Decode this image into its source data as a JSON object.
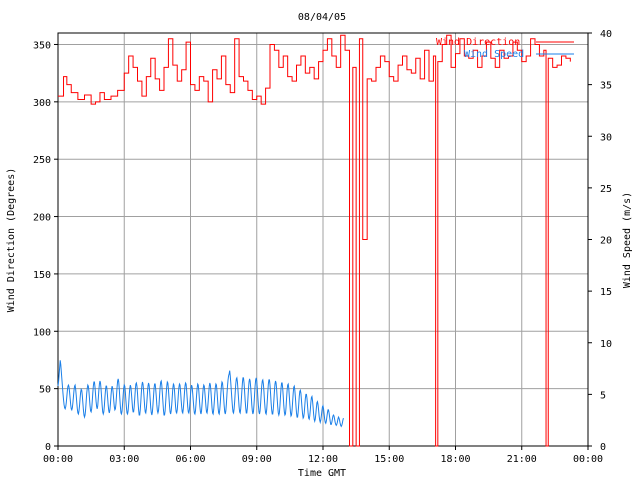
{
  "chart_data": {
    "type": "line",
    "title": "08/04/05",
    "xlabel": "Time GMT",
    "ylabel_left": "Wind Direction (Degrees)",
    "ylabel_right": "Wind Speed (m/s)",
    "xlim": [
      0,
      24
    ],
    "x_ticks": [
      "00:00",
      "03:00",
      "06:00",
      "09:00",
      "12:00",
      "15:00",
      "18:00",
      "21:00",
      "00:00"
    ],
    "ylim_left": [
      0,
      360
    ],
    "y_ticks_left": [
      "0",
      "50",
      "100",
      "150",
      "200",
      "250",
      "300",
      "350"
    ],
    "ylim_right": [
      0,
      40
    ],
    "y_ticks_right": [
      "0",
      "5",
      "10",
      "15",
      "20",
      "25",
      "30",
      "35",
      "40"
    ],
    "grid": true,
    "legend_position": "top-right",
    "colors": {
      "direction": "#ff0000",
      "speed": "#1a7fe8",
      "grid": "#a0a0a0",
      "axis": "#000000"
    },
    "series": [
      {
        "name": "Wind Direction",
        "axis": "left",
        "x": [
          0.0,
          0.25,
          0.4,
          0.6,
          0.9,
          1.2,
          1.5,
          1.7,
          1.9,
          2.1,
          2.4,
          2.7,
          3.0,
          3.2,
          3.4,
          3.6,
          3.8,
          4.0,
          4.2,
          4.4,
          4.6,
          4.8,
          5.0,
          5.2,
          5.4,
          5.6,
          5.8,
          6.0,
          6.2,
          6.4,
          6.6,
          6.8,
          7.0,
          7.2,
          7.4,
          7.6,
          7.8,
          8.0,
          8.2,
          8.4,
          8.6,
          8.8,
          9.0,
          9.2,
          9.4,
          9.6,
          9.8,
          10.0,
          10.2,
          10.4,
          10.6,
          10.8,
          11.0,
          11.2,
          11.4,
          11.6,
          11.8,
          12.0,
          12.2,
          12.4,
          12.6,
          12.8,
          13.0,
          13.2,
          13.35,
          13.5,
          13.65,
          13.8,
          14.0,
          14.2,
          14.4,
          14.6,
          14.8,
          15.0,
          15.2,
          15.4,
          15.6,
          15.8,
          16.0,
          16.2,
          16.4,
          16.6,
          16.8,
          17.0,
          17.1,
          17.2,
          17.4,
          17.6,
          17.8,
          18.0,
          18.2,
          18.4,
          18.6,
          18.8,
          19.0,
          19.2,
          19.4,
          19.6,
          19.8,
          20.0,
          20.2,
          20.4,
          20.6,
          20.8,
          21.0,
          21.2,
          21.4,
          21.6,
          21.8,
          22.0,
          22.1,
          22.2,
          22.4,
          22.6,
          22.8,
          23.0,
          23.2
        ],
        "values": [
          305,
          322,
          315,
          308,
          302,
          306,
          298,
          300,
          308,
          302,
          305,
          310,
          325,
          340,
          330,
          318,
          305,
          322,
          338,
          320,
          310,
          330,
          355,
          332,
          318,
          328,
          352,
          315,
          310,
          322,
          318,
          300,
          328,
          320,
          340,
          315,
          308,
          355,
          322,
          318,
          310,
          302,
          305,
          298,
          312,
          350,
          345,
          330,
          340,
          322,
          318,
          332,
          340,
          325,
          330,
          320,
          335,
          345,
          355,
          340,
          330,
          358,
          345,
          0,
          330,
          0,
          355,
          180,
          320,
          318,
          330,
          340,
          335,
          322,
          318,
          332,
          340,
          328,
          325,
          338,
          320,
          345,
          318,
          340,
          0,
          335,
          350,
          358,
          330,
          342,
          355,
          340,
          338,
          345,
          330,
          340,
          352,
          338,
          330,
          345,
          338,
          340,
          352,
          345,
          335,
          340,
          355,
          350,
          340,
          345,
          0,
          338,
          330,
          332,
          340,
          338,
          335
        ],
        "values_note": ""
      },
      {
        "name": "Wind Speed",
        "axis": "right",
        "hours_start": 0,
        "hours_step": 0.025,
        "values": [
          5.8,
          6.2,
          6.9,
          7.6,
          8.3,
          7.9,
          7.2,
          6.5,
          5.8,
          5.1,
          4.5,
          4.0,
          3.7,
          3.6,
          3.8,
          4.2,
          4.8,
          5.4,
          5.8,
          5.9,
          5.7,
          5.2,
          4.6,
          4.0,
          3.6,
          3.5,
          3.7,
          4.2,
          4.8,
          5.4,
          5.8,
          5.9,
          5.5,
          4.9,
          4.2,
          3.6,
          3.2,
          3.1,
          3.4,
          3.9,
          4.6,
          5.2,
          5.5,
          5.4,
          4.9,
          4.2,
          3.5,
          3.0,
          2.8,
          3.0,
          3.5,
          4.3,
          5.1,
          5.6,
          5.9,
          5.8,
          5.3,
          4.6,
          3.9,
          3.4,
          3.3,
          3.6,
          4.3,
          5.1,
          5.8,
          6.2,
          6.2,
          5.7,
          5.0,
          4.3,
          3.8,
          3.6,
          3.9,
          4.6,
          5.4,
          6.0,
          6.3,
          6.1,
          5.5,
          4.7,
          3.9,
          3.3,
          3.1,
          3.3,
          3.9,
          4.7,
          5.4,
          5.8,
          5.8,
          5.3,
          4.6,
          3.9,
          3.4,
          3.2,
          3.5,
          4.1,
          4.9,
          5.5,
          5.8,
          5.6,
          5.1,
          4.4,
          3.8,
          3.5,
          3.6,
          4.1,
          4.9,
          5.7,
          6.3,
          6.5,
          6.2,
          5.5,
          4.6,
          3.8,
          3.2,
          3.1,
          3.4,
          4.1,
          4.9,
          5.6,
          5.9,
          5.8,
          5.2,
          4.4,
          3.7,
          3.2,
          3.1,
          3.4,
          4.1,
          4.9,
          5.6,
          5.9,
          5.7,
          5.1,
          4.4,
          3.7,
          3.3,
          3.3,
          3.8,
          4.6,
          5.4,
          6.0,
          6.1,
          5.8,
          5.1,
          4.2,
          3.5,
          3.0,
          3.0,
          3.5,
          4.3,
          5.2,
          5.9,
          6.2,
          6.0,
          5.4,
          4.6,
          3.8,
          3.3,
          3.2,
          3.6,
          4.3,
          5.1,
          5.8,
          6.1,
          5.9,
          5.3,
          4.5,
          3.7,
          3.2,
          3.0,
          3.3,
          4.0,
          4.8,
          5.6,
          6.0,
          6.0,
          5.5,
          4.8,
          4.0,
          3.4,
          3.2,
          3.4,
          4.0,
          4.9,
          5.7,
          6.2,
          6.3,
          5.9,
          5.1,
          4.3,
          3.5,
          3.0,
          3.0,
          3.4,
          4.2,
          5.1,
          5.8,
          6.2,
          6.1,
          5.5,
          4.7,
          3.9,
          3.3,
          3.1,
          3.4,
          4.0,
          4.8,
          5.6,
          6.0,
          5.9,
          5.4,
          4.6,
          3.8,
          3.3,
          3.2,
          3.5,
          4.2,
          5.0,
          5.7,
          6.0,
          5.9,
          5.3,
          4.5,
          3.8,
          3.3,
          3.2,
          3.6,
          4.3,
          5.1,
          5.8,
          6.1,
          6.0,
          5.4,
          4.6,
          3.8,
          3.3,
          3.2,
          3.5,
          4.2,
          5.0,
          5.6,
          5.9,
          5.7,
          5.1,
          4.4,
          3.7,
          3.2,
          3.1,
          3.4,
          4.1,
          4.9,
          5.6,
          6.0,
          5.9,
          5.4,
          4.6,
          3.8,
          3.3,
          3.1,
          3.4,
          4.1,
          4.9,
          5.6,
          5.9,
          5.8,
          5.2,
          4.5,
          3.8,
          3.3,
          3.2,
          3.6,
          4.3,
          5.1,
          5.8,
          6.1,
          5.9,
          5.3,
          4.5,
          3.7,
          3.2,
          3.1,
          3.5,
          4.2,
          5.0,
          5.7,
          6.0,
          5.9,
          5.3,
          4.5,
          3.7,
          3.2,
          3.1,
          3.5,
          4.2,
          5.1,
          5.8,
          6.2,
          6.1,
          5.5,
          4.7,
          3.9,
          3.3,
          3.1,
          3.4,
          4.1,
          5.0,
          5.8,
          6.4,
          6.8,
          7.0,
          7.3,
          6.8,
          6.1,
          5.3,
          4.5,
          3.8,
          3.3,
          3.2,
          3.6,
          4.3,
          5.2,
          6.0,
          6.5,
          6.6,
          6.2,
          5.4,
          4.6,
          3.8,
          3.3,
          3.2,
          3.6,
          4.4,
          5.3,
          6.1,
          6.6,
          6.6,
          6.1,
          5.3,
          4.4,
          3.7,
          3.2,
          3.2,
          3.7,
          4.6,
          5.5,
          6.2,
          6.5,
          6.3,
          5.7,
          4.9,
          4.0,
          3.4,
          3.1,
          3.3,
          4.0,
          4.9,
          5.8,
          6.4,
          6.6,
          6.3,
          5.6,
          4.7,
          3.9,
          3.3,
          3.1,
          3.4,
          4.1,
          5.0,
          5.8,
          6.3,
          6.4,
          6.0,
          5.3,
          4.4,
          3.7,
          3.2,
          3.1,
          3.5,
          4.3,
          5.2,
          6.0,
          6.4,
          6.4,
          5.9,
          5.1,
          4.2,
          3.5,
          3.1,
          3.1,
          3.6,
          4.4,
          5.3,
          6.0,
          6.3,
          6.1,
          5.5,
          4.6,
          3.8,
          3.2,
          3.0,
          3.2,
          3.9,
          4.8,
          5.6,
          6.1,
          6.1,
          5.6,
          4.8,
          3.9,
          3.3,
          3.0,
          3.1,
          3.7,
          4.6,
          5.4,
          5.9,
          6.0,
          5.6,
          4.8,
          4.0,
          3.3,
          2.9,
          3.0,
          3.5,
          4.3,
          5.1,
          5.7,
          5.8,
          5.4,
          4.7,
          3.9,
          3.2,
          2.8,
          2.8,
          3.3,
          4.0,
          4.8,
          5.3,
          5.4,
          5.1,
          4.4,
          3.7,
          3.1,
          2.7,
          2.8,
          3.2,
          3.9,
          4.6,
          5.0,
          5.0,
          4.6,
          3.9,
          3.2,
          2.7,
          2.6,
          2.9,
          3.5,
          4.2,
          4.7,
          4.8,
          4.4,
          3.8,
          3.1,
          2.6,
          2.4,
          2.6,
          3.1,
          3.7,
          4.2,
          4.3,
          4.0,
          3.5,
          2.9,
          2.5,
          2.3,
          2.5,
          2.9,
          3.4,
          3.8,
          3.9,
          3.6,
          3.1,
          2.6,
          2.3,
          2.2,
          2.4,
          2.8,
          3.2,
          3.5,
          3.5,
          3.2,
          2.8,
          2.4,
          2.1,
          2.1,
          2.3,
          2.6,
          2.9,
          3.0,
          2.9,
          2.6,
          2.3,
          2.1,
          2.0,
          2.1,
          2.3,
          2.6,
          2.8,
          2.7,
          2.5,
          2.2,
          2.0,
          1.9,
          2.0,
          2.2,
          2.5,
          2.7
        ]
      }
    ]
  }
}
